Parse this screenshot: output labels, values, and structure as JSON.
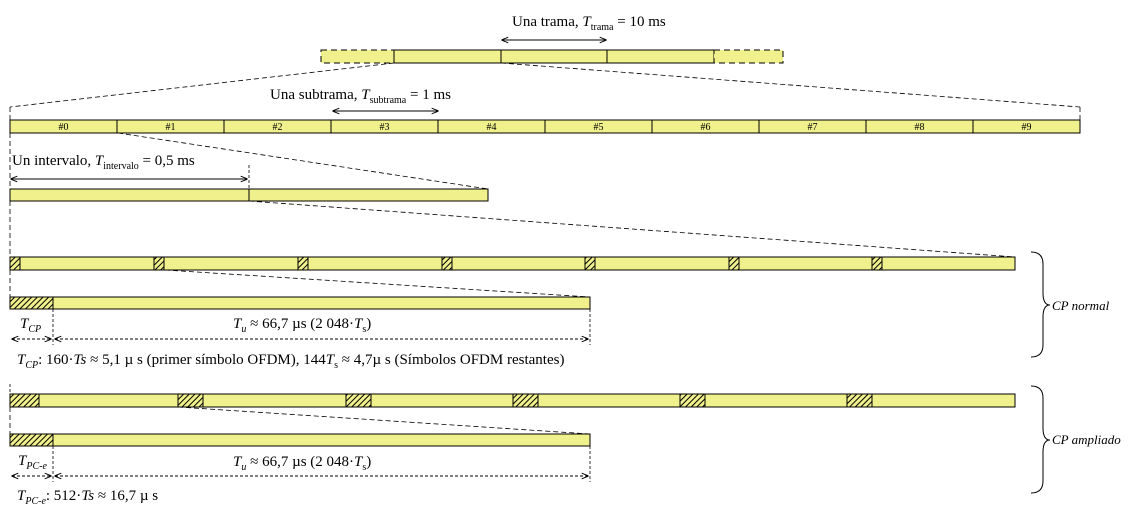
{
  "colors": {
    "bar_fill": "#f0f08c",
    "stroke": "#000000",
    "background": "#ffffff"
  },
  "frame": {
    "label_prefix": "Una trama, ",
    "symbol": "T",
    "sub": "trama",
    "suffix": " = 10 ms"
  },
  "subframe": {
    "label_prefix": "Una subtrama, ",
    "symbol": "T",
    "sub": "subtrama",
    "suffix": " = 1 ms",
    "labels": [
      "#0",
      "#1",
      "#2",
      "#3",
      "#4",
      "#5",
      "#6",
      "#7",
      "#8",
      "#9"
    ]
  },
  "slot": {
    "label_prefix": "Un intervalo, ",
    "symbol": "T",
    "sub": "intervalo",
    "suffix": " = 0,5 ms"
  },
  "normal_cp": {
    "group_label": "CP normal",
    "cp_symbol": "T",
    "cp_sub": "CP",
    "tu_symbol": "T",
    "tu_sub": "u",
    "tu_text": " ≈ 66,7 µs (2 048·",
    "tu_ts": "T",
    "tu_ts_sub": "s",
    "tu_close": ")",
    "note_symbol": "T",
    "note_sub": "CP",
    "note_a": ": 160·",
    "note_ts1": "Ts",
    "note_b": " ≈  5,1 µ s (primer símbolo OFDM), 144",
    "note_ts2": "T",
    "note_ts2_sub": "s",
    "note_c": " ≈  4,7µ  s (Símbolos OFDM restantes)"
  },
  "extended_cp": {
    "group_label": "CP ampliado",
    "cp_symbol": "T",
    "cp_sub": "PC-e",
    "tu_symbol": "T",
    "tu_sub": "u",
    "tu_text": " ≈ 66,7 µs (2 048·",
    "tu_ts": "T",
    "tu_ts_sub": "s",
    "tu_close": ")",
    "note_symbol": "T",
    "note_sub": "PC-e",
    "note_a": ": 512·",
    "note_ts1": "Ts",
    "note_b": " ≈ 16,7 µ s"
  }
}
